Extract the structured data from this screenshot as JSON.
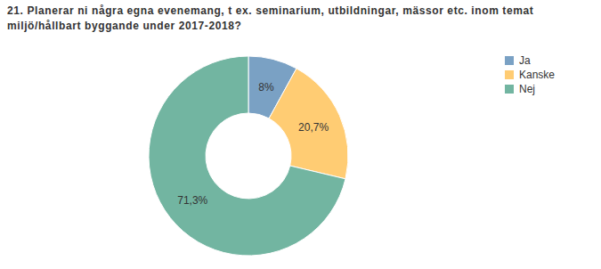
{
  "chart_data": {
    "type": "pie",
    "title": "21. Planerar ni några egna evenemang, t ex. seminarium, utbildningar, mässor etc. inom temat miljö/hållbart byggande under 2017-2018?",
    "categories": [
      "Ja",
      "Kanske",
      "Nej"
    ],
    "values": [
      8,
      20.7,
      71.3
    ],
    "value_labels": [
      "8%",
      "20,7%",
      "71,3%"
    ],
    "colors": [
      "#7aa1c4",
      "#ffcc73",
      "#72b5a1"
    ],
    "data_labels": true,
    "legend": "top-right"
  }
}
